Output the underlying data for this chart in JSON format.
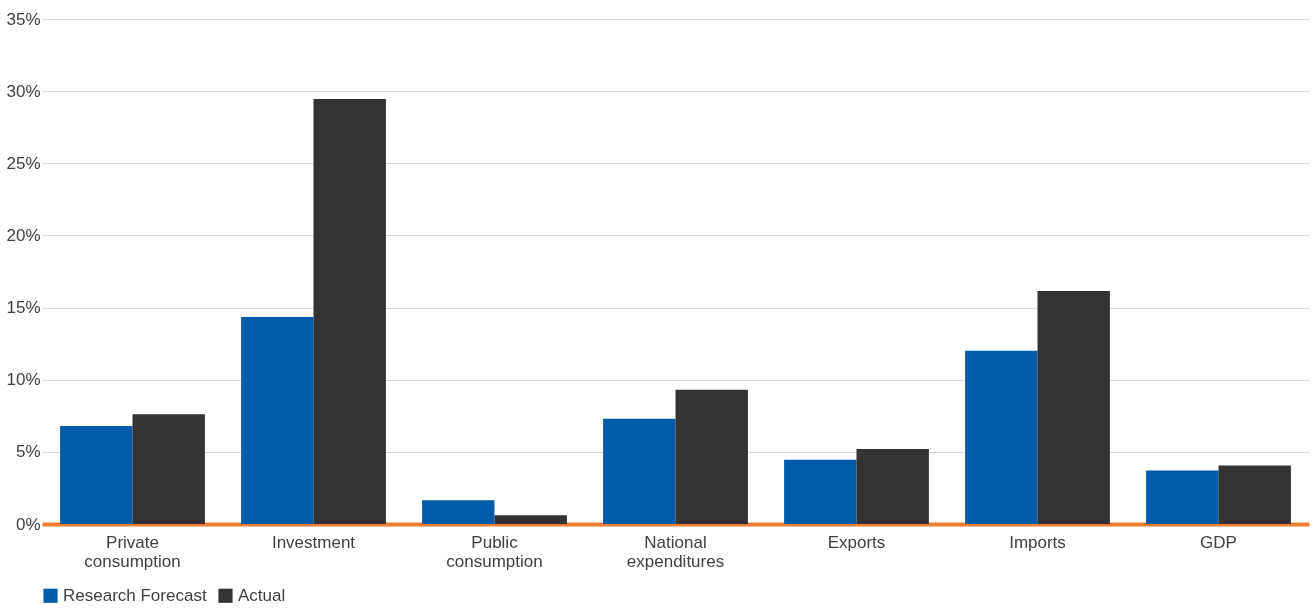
{
  "chart_data": {
    "type": "bar",
    "categories": [
      "Private consumption",
      "Investment",
      "Public consumption",
      "National expenditures",
      "Exports",
      "Imports",
      "GDP"
    ],
    "series": [
      {
        "name": "Research Forecast",
        "color": "#005ca9",
        "values": [
          6.8,
          14.35,
          1.65,
          7.3,
          4.45,
          12.0,
          3.7
        ]
      },
      {
        "name": "Actual",
        "color": "#333333",
        "values": [
          7.6,
          29.45,
          0.6,
          9.3,
          5.2,
          16.15,
          4.05
        ]
      }
    ],
    "ylim": [
      0,
      35
    ],
    "yticks": [
      {
        "value": 0,
        "label": "0%"
      },
      {
        "value": 5,
        "label": "5%"
      },
      {
        "value": 10,
        "label": "10%"
      },
      {
        "value": 15,
        "label": "15%"
      },
      {
        "value": 20,
        "label": "20%"
      },
      {
        "value": 25,
        "label": "25%"
      },
      {
        "value": 30,
        "label": "30%"
      },
      {
        "value": 35,
        "label": "35%"
      }
    ],
    "grid": "y",
    "legend": "bottom"
  }
}
